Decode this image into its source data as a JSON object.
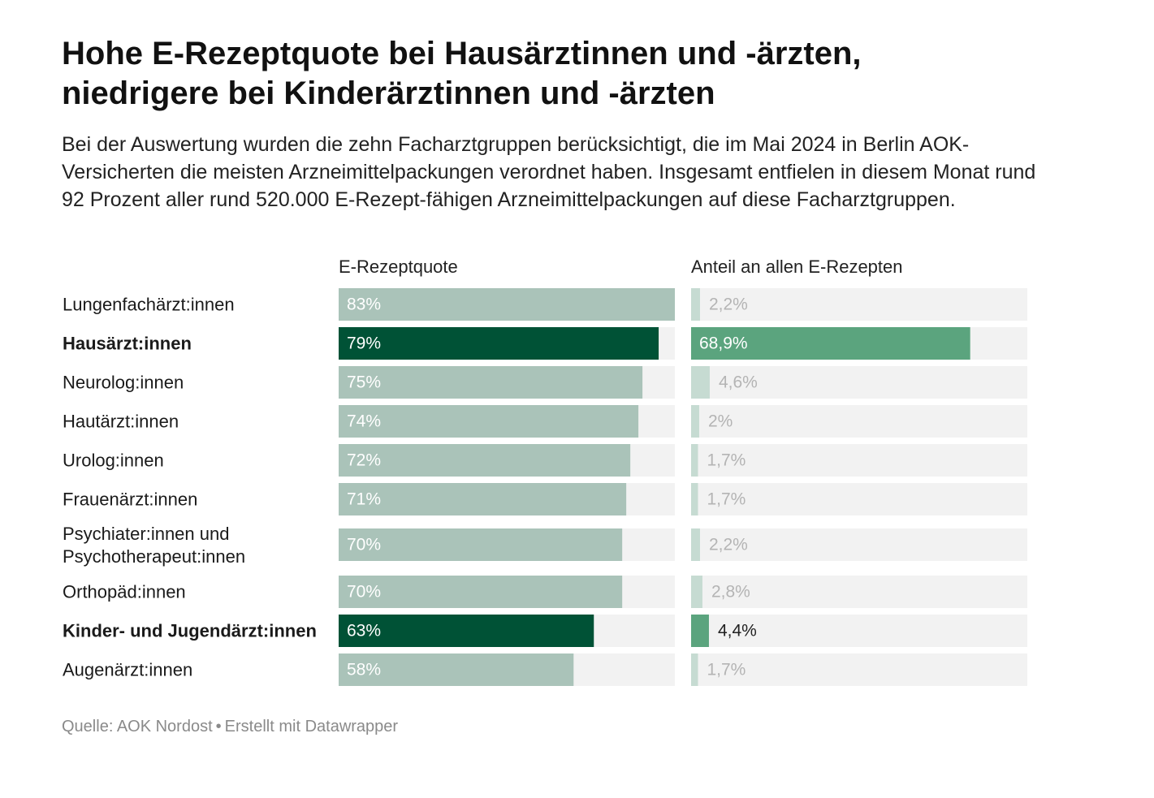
{
  "title_line1": "Hohe E-Rezeptquote bei Hausärztinnen und -ärzten,",
  "title_line2": "niedrigere bei Kinderärztinnen und -ärzten",
  "subtitle": "Bei der Auswertung wurden die zehn Facharztgruppen berücksichtigt, die im Mai 2024 in Berlin AOK-Versicherten die meisten Arzneimittelpackungen verordnet haben. Insgesamt entfielen in diesem Monat rund 92 Prozent aller rund 520.000 E-Rezept-fähigen Arzneimittelpackungen auf diese Facharztgruppen.",
  "source_label": "Quelle: AOK Nordost",
  "credit": "Erstellt mit Datawrapper",
  "colors": {
    "quote_normal": "#aac3b9",
    "quote_highlight": "#005236",
    "share_normal": "#c6dbd2",
    "share_highlight": "#5ba47e",
    "track": "#f2f2f2",
    "label_muted": "#b4b4b4",
    "label_on_bar": "#ffffff",
    "label_dark": "#222222"
  },
  "chart_data": {
    "type": "bar",
    "orientation": "horizontal",
    "columns": [
      {
        "key": "quote",
        "title": "E-Rezeptquote",
        "max": 83,
        "unit": "%"
      },
      {
        "key": "share",
        "title": "Anteil an allen E-Rezepten",
        "max": 83,
        "unit": "%"
      }
    ],
    "rows": [
      {
        "label": [
          "Lungenfachärzt:innen"
        ],
        "highlight": false,
        "quote": 83,
        "quote_label": "83%",
        "share": 2.2,
        "share_label": "2,2%"
      },
      {
        "label": [
          "Hausärzt:innen"
        ],
        "highlight": true,
        "quote": 79,
        "quote_label": "79%",
        "share": 68.9,
        "share_label": "68,9%"
      },
      {
        "label": [
          "Neurolog:innen"
        ],
        "highlight": false,
        "quote": 75,
        "quote_label": "75%",
        "share": 4.6,
        "share_label": "4,6%"
      },
      {
        "label": [
          "Hautärzt:innen"
        ],
        "highlight": false,
        "quote": 74,
        "quote_label": "74%",
        "share": 2,
        "share_label": "2%"
      },
      {
        "label": [
          "Urolog:innen"
        ],
        "highlight": false,
        "quote": 72,
        "quote_label": "72%",
        "share": 1.7,
        "share_label": "1,7%"
      },
      {
        "label": [
          "Frauenärzt:innen"
        ],
        "highlight": false,
        "quote": 71,
        "quote_label": "71%",
        "share": 1.7,
        "share_label": "1,7%"
      },
      {
        "label": [
          "Psychiater:innen und",
          "Psychotherapeut:innen"
        ],
        "highlight": false,
        "quote": 70,
        "quote_label": "70%",
        "share": 2.2,
        "share_label": "2,2%"
      },
      {
        "label": [
          "Orthopäd:innen"
        ],
        "highlight": false,
        "quote": 70,
        "quote_label": "70%",
        "share": 2.8,
        "share_label": "2,8%"
      },
      {
        "label": [
          "Kinder- und Jugendärzt:innen"
        ],
        "highlight": true,
        "quote": 63,
        "quote_label": "63%",
        "share": 4.4,
        "share_label": "4,4%"
      },
      {
        "label": [
          "Augenärzt:innen"
        ],
        "highlight": false,
        "quote": 58,
        "quote_label": "58%",
        "share": 1.7,
        "share_label": "1,7%"
      }
    ]
  }
}
